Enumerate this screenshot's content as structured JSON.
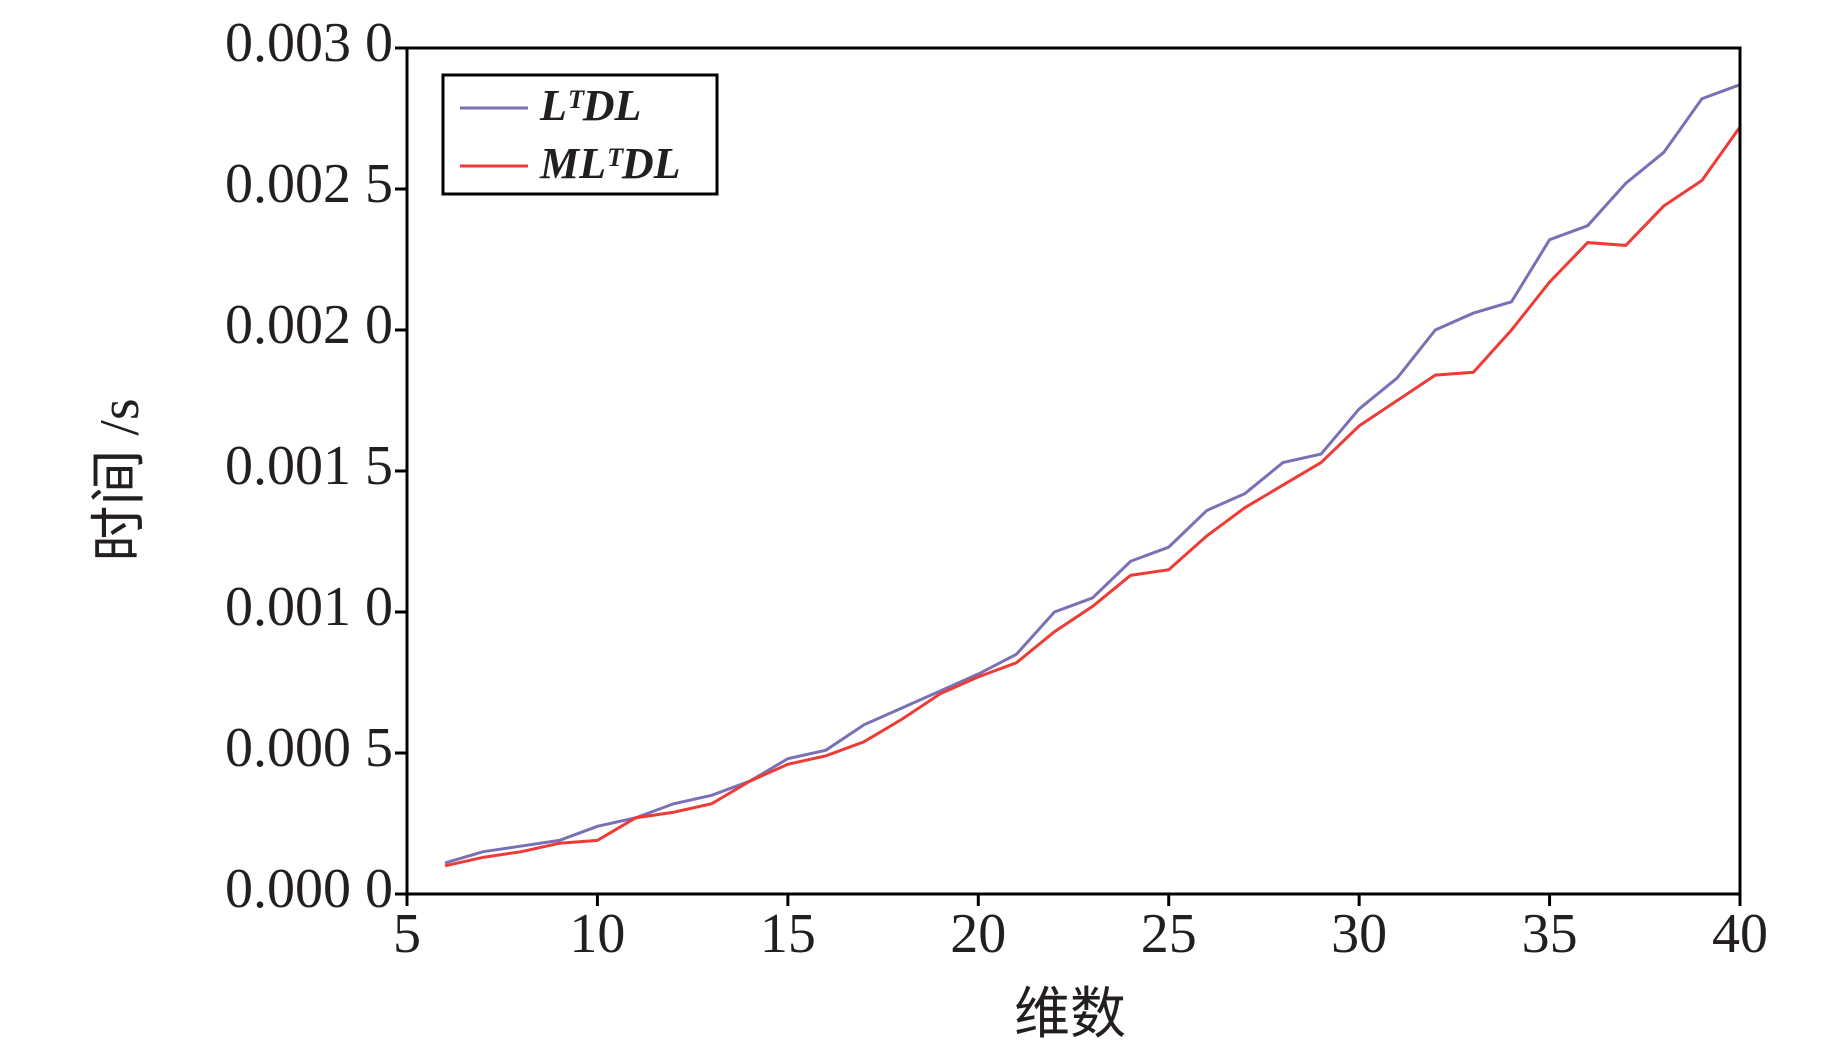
{
  "chart_data": {
    "type": "line",
    "x_label": "维数",
    "y_label": "时间 /s",
    "x": [
      6,
      7,
      8,
      9,
      10,
      11,
      12,
      13,
      14,
      15,
      16,
      17,
      18,
      19,
      20,
      21,
      22,
      23,
      24,
      25,
      26,
      27,
      28,
      29,
      30,
      31,
      32,
      33,
      34,
      35,
      36,
      37,
      38,
      39,
      40
    ],
    "series": [
      {
        "name": "LᵀDL",
        "color": "#7b6fb5",
        "values": [
          0.00011,
          0.00015,
          0.00017,
          0.00019,
          0.00024,
          0.00027,
          0.00032,
          0.00035,
          0.0004,
          0.00048,
          0.00051,
          0.0006,
          0.00066,
          0.00072,
          0.00078,
          0.00085,
          0.001,
          0.00105,
          0.00118,
          0.00123,
          0.00136,
          0.00142,
          0.00153,
          0.00156,
          0.00172,
          0.00183,
          0.002,
          0.00206,
          0.0021,
          0.00232,
          0.00237,
          0.00252,
          0.00263,
          0.00282,
          0.00287
        ]
      },
      {
        "name": "MLᵀDL",
        "color": "#ee3b36",
        "values": [
          0.0001,
          0.00013,
          0.00015,
          0.00018,
          0.00019,
          0.00027,
          0.00029,
          0.00032,
          0.0004,
          0.00046,
          0.00049,
          0.00054,
          0.00062,
          0.00071,
          0.00077,
          0.00082,
          0.00093,
          0.00102,
          0.00113,
          0.00115,
          0.00127,
          0.00137,
          0.00145,
          0.00153,
          0.00166,
          0.00175,
          0.00184,
          0.00185,
          0.002,
          0.00217,
          0.00231,
          0.0023,
          0.00244,
          0.00253,
          0.00272
        ]
      }
    ],
    "xlim": [
      5,
      40
    ],
    "xticks": [
      5,
      10,
      15,
      20,
      25,
      30,
      35,
      40
    ],
    "ylim": [
      0,
      0.003
    ],
    "yticks": [
      {
        "value": 0,
        "label": "0.000 0"
      },
      {
        "value": 0.0005,
        "label": "0.000 5"
      },
      {
        "value": 0.001,
        "label": "0.001 0"
      },
      {
        "value": 0.0015,
        "label": "0.001 5"
      },
      {
        "value": 0.002,
        "label": "0.002 0"
      },
      {
        "value": 0.0025,
        "label": "0.002 5"
      },
      {
        "value": 0.003,
        "label": "0.003 0"
      }
    ],
    "legend": "upper-left"
  }
}
